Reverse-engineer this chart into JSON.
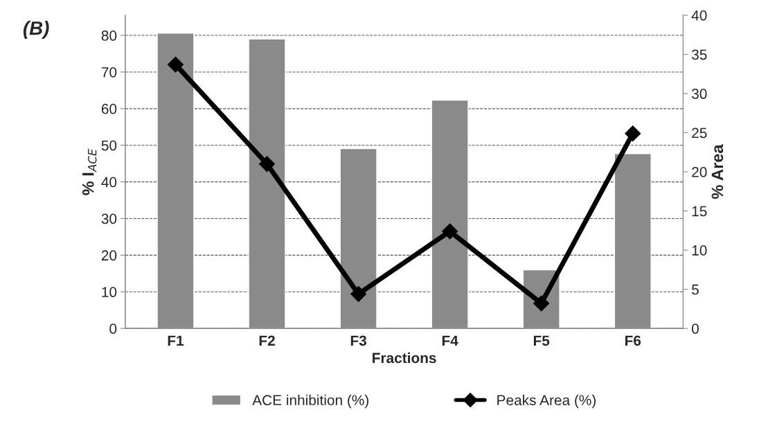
{
  "chart_data": {
    "type": "bar",
    "categories": [
      "F1",
      "F2",
      "F3",
      "F4",
      "F5",
      "F6"
    ],
    "series": [
      {
        "name": "ACE inhibition (%)",
        "color": "#8a8a8a",
        "values": [
          80.6,
          79.0,
          49.1,
          62.3,
          16.0,
          47.7
        ]
      },
      {
        "name": "Peaks Area (%)",
        "type": "line",
        "axis": "y2",
        "color": "#000000",
        "values": [
          33.7,
          21.0,
          4.4,
          12.4,
          3.2,
          24.9
        ]
      }
    ],
    "xlabel": "Fractions",
    "ylabel": "% I$_{ACE}$",
    "y2label": "% Area",
    "annotations": [
      "(B)"
    ],
    "ylim": [
      0,
      85.5
    ],
    "yticks": [
      0,
      10,
      20,
      30,
      40,
      50,
      60,
      70,
      80
    ],
    "y2lim": [
      0,
      40
    ],
    "y2ticks": [
      0,
      5,
      10,
      15,
      20,
      25,
      30,
      35,
      40
    ],
    "grid": "y",
    "legend": "bottom",
    "marker": "diamond",
    "line_style": "solid"
  }
}
